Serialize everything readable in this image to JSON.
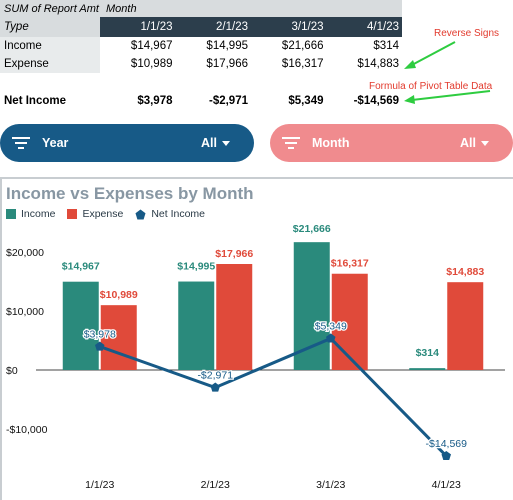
{
  "pivot": {
    "header_left": "SUM of Report Amt",
    "header_month": "Month",
    "type_label": "Type",
    "columns": [
      "1/1/23",
      "2/1/23",
      "3/1/23",
      "4/1/23"
    ],
    "rows": [
      {
        "label": "Income",
        "values": [
          "$14,967",
          "$14,995",
          "$21,666",
          "$314"
        ]
      },
      {
        "label": "Expense",
        "values": [
          "$10,989",
          "$17,966",
          "$16,317",
          "$14,883"
        ]
      }
    ],
    "net": {
      "label": "Net Income",
      "values": [
        "$3,978",
        "-$2,971",
        "$5,349",
        "-$14,569"
      ]
    }
  },
  "annotations": {
    "reverse_signs": "Reverse Signs",
    "formula_note": "Formula of Pivot Table Data"
  },
  "slicers": {
    "year": {
      "label": "Year",
      "value": "All"
    },
    "month": {
      "label": "Month",
      "value": "All"
    }
  },
  "legend": {
    "income": "Income",
    "expense": "Expense",
    "net": "Net Income"
  },
  "colors": {
    "income": "#2a8a7c",
    "expense": "#e04a3a",
    "net": "#175a87",
    "year_slicer": "#175a87",
    "month_slicer": "#f08b8e",
    "annotation": "#e23b2e",
    "arrow": "#2ecc40"
  },
  "chart_data": {
    "type": "bar",
    "title": "Income vs Expenses by Month",
    "categories": [
      "1/1/23",
      "2/1/23",
      "3/1/23",
      "4/1/23"
    ],
    "series": [
      {
        "name": "Income",
        "type": "bar",
        "values": [
          14967,
          14995,
          21666,
          314
        ],
        "labels": [
          "$14,967",
          "$14,995",
          "$21,666",
          "$314"
        ]
      },
      {
        "name": "Expense",
        "type": "bar",
        "values": [
          10989,
          17966,
          16317,
          14883
        ],
        "labels": [
          "$10,989",
          "$17,966",
          "$16,317",
          "$14,883"
        ]
      },
      {
        "name": "Net Income",
        "type": "line",
        "values": [
          3978,
          -2971,
          5349,
          -14569
        ],
        "labels": [
          "$3,978",
          "-$2,971",
          "$5,349",
          "-$14,569"
        ]
      }
    ],
    "y_ticks": [
      20000,
      10000,
      0,
      -10000
    ],
    "y_tick_labels": [
      "$20,000",
      "$10,000",
      "$0",
      "-$10,000"
    ],
    "ylim": [
      -15500,
      22000
    ],
    "grid": false,
    "legend_position": "top-left"
  }
}
